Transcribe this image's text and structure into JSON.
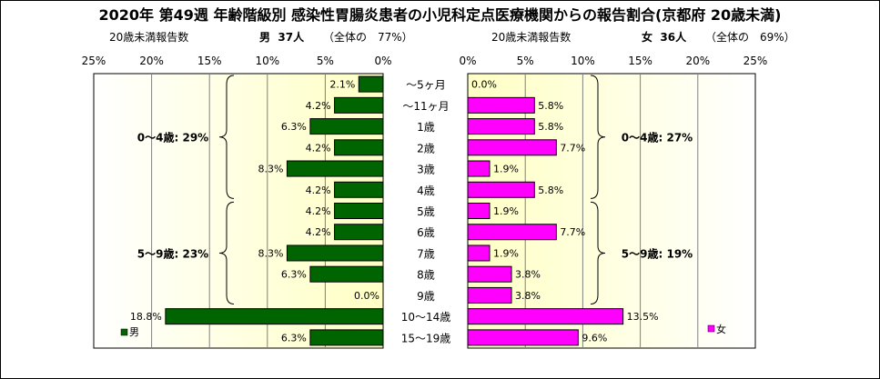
{
  "title": "2020年 第49週 年齢階級別 感染性胃腸炎患者の小児科定点医療機関からの報告割合(京都府 20歳未満)",
  "male_header": {
    "sub": "20歳未満報告数",
    "summary_label": "男",
    "summary_count": "37人",
    "summary_share": "（全体の　77%）"
  },
  "female_header": {
    "sub": "20歳未満報告数",
    "summary_label": "女",
    "summary_count": "36人",
    "summary_share": "（全体の　69%）"
  },
  "chart_data": {
    "type": "bar",
    "orientation": "horizontal",
    "layout": "population-pyramid",
    "categories": [
      "～5ヶ月",
      "～11ヶ月",
      "1歳",
      "2歳",
      "3歳",
      "4歳",
      "5歳",
      "6歳",
      "7歳",
      "8歳",
      "9歳",
      "10～14歳",
      "15～19歳"
    ],
    "series": [
      {
        "name": "男",
        "color": "#006400",
        "values": [
          2.1,
          4.2,
          6.3,
          4.2,
          8.3,
          4.2,
          4.2,
          4.2,
          8.3,
          6.3,
          0.0,
          18.8,
          6.3
        ],
        "labels": [
          "2.1%",
          "4.2%",
          "6.3%",
          "4.2%",
          "8.3%",
          "4.2%",
          "4.2%",
          "4.2%",
          "8.3%",
          "6.3%",
          "0.0%",
          "18.8%",
          "6.3%"
        ]
      },
      {
        "name": "女",
        "color": "#ff00ff",
        "values": [
          0.0,
          5.8,
          5.8,
          7.7,
          1.9,
          5.8,
          1.9,
          7.7,
          1.9,
          3.8,
          3.8,
          13.5,
          9.6
        ],
        "labels": [
          "0.0%",
          "5.8%",
          "5.8%",
          "7.7%",
          "1.9%",
          "5.8%",
          "1.9%",
          "7.7%",
          "1.9%",
          "3.8%",
          "3.8%",
          "13.5%",
          "9.6%"
        ]
      }
    ],
    "xlim": [
      0,
      25
    ],
    "ticks": [
      "0%",
      "5%",
      "10%",
      "15%",
      "20%",
      "25%"
    ],
    "group_annotations": {
      "male": [
        {
          "text": "0～4歳: 29%",
          "from": 0,
          "to": 5
        },
        {
          "text": "5～9歳: 23%",
          "from": 6,
          "to": 10
        }
      ],
      "female": [
        {
          "text": "0～4歳: 27%",
          "from": 0,
          "to": 5
        },
        {
          "text": "5～9歳: 19%",
          "from": 6,
          "to": 10
        }
      ]
    },
    "legend": {
      "male": "男",
      "female": "女"
    },
    "grid": true
  }
}
